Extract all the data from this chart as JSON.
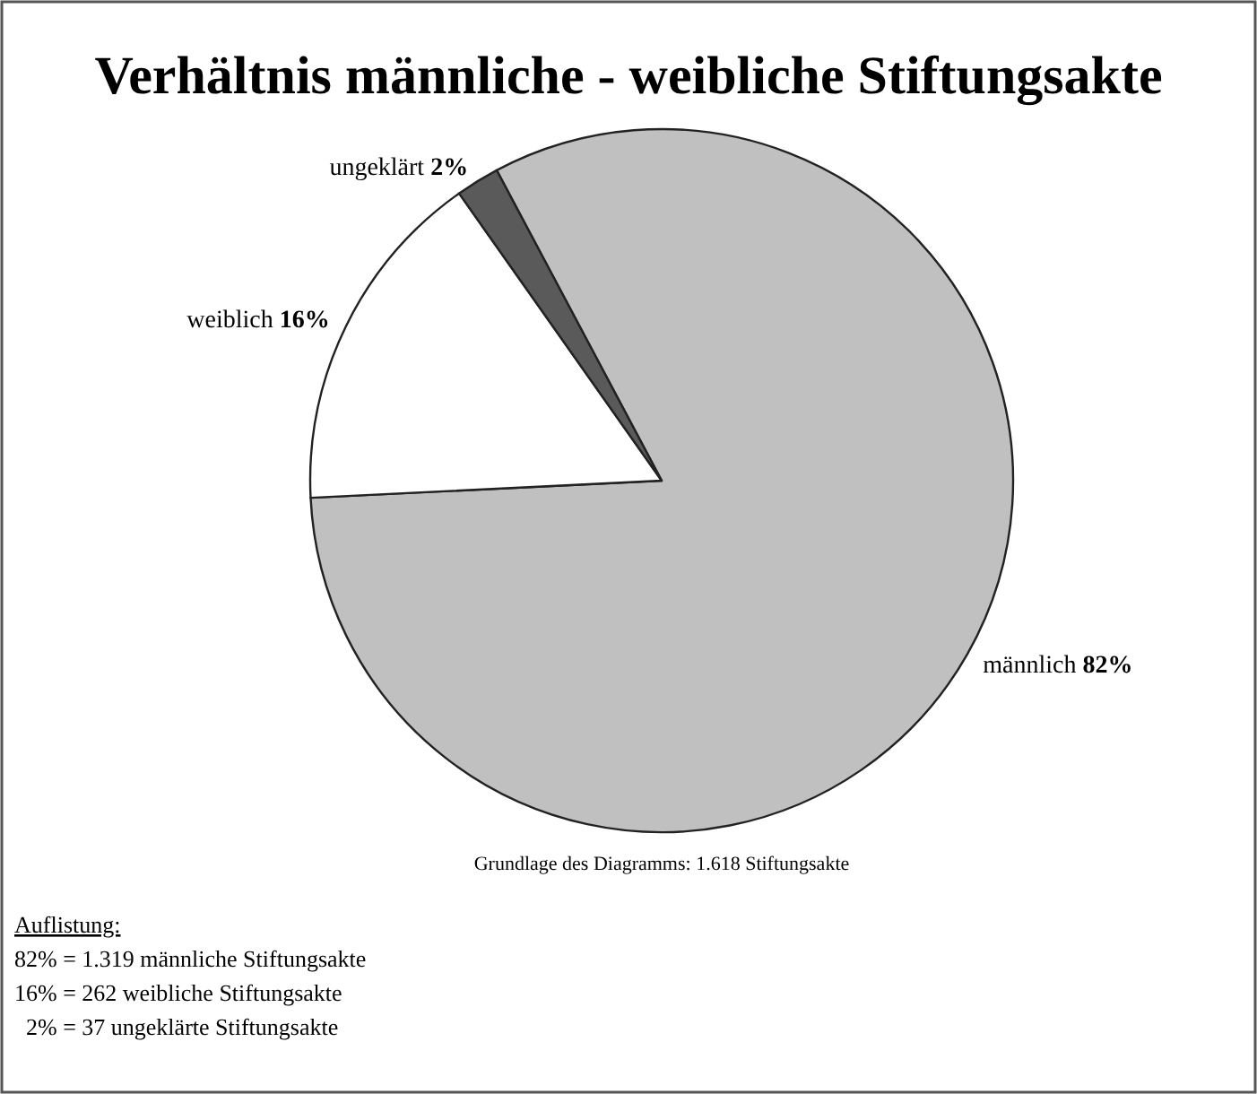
{
  "chart_data": {
    "type": "pie",
    "title": "Verhältnis männliche - weibliche Stiftungsakte",
    "categories": [
      "männlich",
      "weiblich",
      "ungeklärt"
    ],
    "values": [
      82,
      16,
      2
    ],
    "colors": [
      "#c0c0c0",
      "#ffffff",
      "#5a5a5a"
    ],
    "value_labels": [
      "82%",
      "16%",
      "2%"
    ],
    "annotations": [
      "Grundlage des Diagramms: 1.618 Stiftungsakte",
      "Auflistung:",
      "82% = 1.319 männliche Stiftungsakte",
      "16% = 262 weibliche Stiftungsakte",
      "  2% = 37 ungeklärte Stiftungsakte"
    ]
  }
}
